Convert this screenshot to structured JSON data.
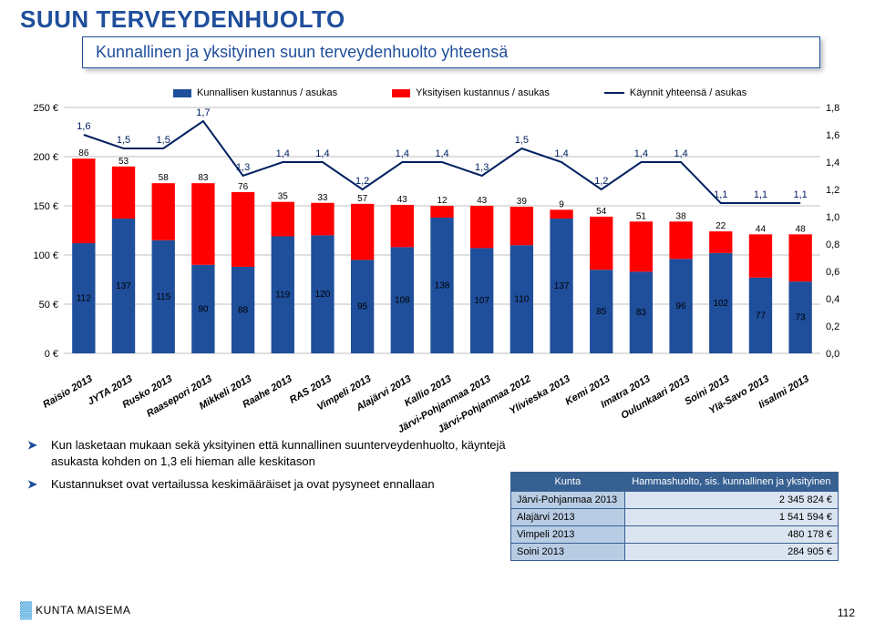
{
  "page_title": "SUUN TERVEYDENHUOLTO",
  "subtitle": "Kunnallinen ja yksityinen suun terveydenhuolto yhteensä",
  "legend": {
    "series1": "Kunnallisen kustannus / asukas",
    "series2": "Yksityisen kustannus / asukas",
    "series3": "Käynnit yhteensä / asukas"
  },
  "chart": {
    "type": "stacked-bar-with-line",
    "y_left": {
      "min": 0,
      "max": 250,
      "step": 50,
      "suffix": " €"
    },
    "y_right": {
      "min": 0,
      "max": 1.8,
      "step": 0.2
    },
    "bar_color_bottom": "#1f4e9b",
    "bar_color_top": "#ff0000",
    "line_color": "#002060",
    "grid_color": "#bfbfbf",
    "categories": [
      "Raisio 2013",
      "JYTA 2013",
      "Rusko 2013",
      "Raasepori 2013",
      "Mikkeli 2013",
      "Raahe 2013",
      "RAS 2013",
      "Vimpeli 2013",
      "Alajärvi 2013",
      "Kallio 2013",
      "Järvi-Pohjanmaa 2013",
      "Järvi-Pohjanmaa 2012",
      "Ylivieska 2013",
      "Kemi 2013",
      "Imatra 2013",
      "Oulunkaari 2013",
      "Soini 2013",
      "Ylä-Savo 2013",
      "Iisalmi 2013"
    ],
    "bottom_values": [
      112,
      137,
      115,
      90,
      88,
      119,
      120,
      95,
      108,
      138,
      107,
      110,
      137,
      85,
      83,
      96,
      102,
      77,
      73
    ],
    "top_values": [
      86,
      53,
      58,
      83,
      76,
      35,
      33,
      57,
      43,
      12,
      43,
      39,
      9,
      54,
      51,
      38,
      22,
      44,
      48
    ],
    "line_values": [
      1.6,
      1.5,
      1.5,
      1.7,
      1.3,
      1.4,
      1.4,
      1.2,
      1.4,
      1.4,
      1.3,
      1.5,
      1.4,
      1.2,
      1.4,
      1.4,
      1.1,
      1.1,
      1.1
    ]
  },
  "bullets": [
    "Kun lasketaan mukaan sekä yksityinen että kunnallinen suunterveydenhuolto, käyntejä asukasta kohden on 1,3 eli hieman alle keskitason",
    "Kustannukset ovat vertailussa keskimääräiset ja ovat pysyneet ennallaan"
  ],
  "table": {
    "headers": [
      "Kunta",
      "Hammashuolto, sis. kunnallinen ja yksityinen"
    ],
    "rows": [
      [
        "Järvi-Pohjanmaa 2013",
        "2 345 824 €"
      ],
      [
        "Alajärvi 2013",
        "1 541 594 €"
      ],
      [
        "Vimpeli 2013",
        "480 178 €"
      ],
      [
        "Soini 2013",
        "284 905 €"
      ]
    ]
  },
  "logo_text": "KUNTA MAISEMA",
  "page_number": "112"
}
